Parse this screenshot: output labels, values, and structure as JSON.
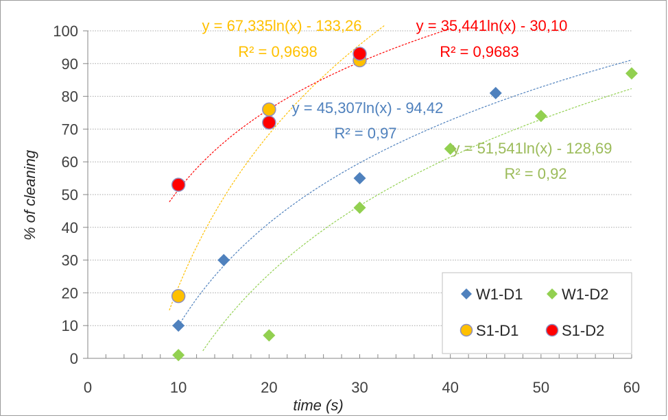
{
  "chart_data": {
    "type": "scatter",
    "xlabel": "time (s)",
    "ylabel": "% of cleaning",
    "xlim": [
      0,
      60
    ],
    "ylim": [
      0,
      100
    ],
    "xticks": [
      0,
      10,
      20,
      30,
      40,
      50,
      60
    ],
    "yticks": [
      0,
      10,
      20,
      30,
      40,
      50,
      60,
      70,
      80,
      90,
      100
    ],
    "grid": "horizontal dotted",
    "legend_position": "bottom-right",
    "series": [
      {
        "name": "W1-D1",
        "marker": "diamond",
        "color": "#4F81BD",
        "x": [
          10,
          15,
          30,
          45
        ],
        "y": [
          10,
          30,
          55,
          81
        ],
        "trendline": {
          "a": 45.307,
          "b": -94.42,
          "xmin": 10,
          "xmax": 60,
          "equation": "y = 45,307ln(x) - 94,42",
          "r2": "R² = 0,97",
          "label_color": "#4F81BD"
        }
      },
      {
        "name": "W1-D2",
        "marker": "diamond",
        "color": "#92D050",
        "x": [
          10,
          20,
          30,
          40,
          50,
          60
        ],
        "y": [
          1,
          7,
          46,
          64,
          74,
          87
        ],
        "trendline": {
          "a": 51.541,
          "b": -128.69,
          "xmin": 12.1,
          "xmax": 60,
          "equation": "y = 51,541ln(x) - 128,69",
          "r2": "R² = 0,92",
          "label_color": "#9BBB59"
        }
      },
      {
        "name": "S1-D1",
        "marker": "circle",
        "color": "#FFC000",
        "x": [
          10,
          20,
          30
        ],
        "y": [
          19,
          76,
          91
        ],
        "trendline": {
          "a": 67.335,
          "b": -133.26,
          "xmin": 9,
          "xmax": 33,
          "equation": "y = 67,335ln(x) - 133,26",
          "r2": "R² = 0,9698",
          "label_color": "#FFC000"
        }
      },
      {
        "name": "S1-D2",
        "marker": "circle",
        "color": "#FF0000",
        "x": [
          10,
          20,
          30
        ],
        "y": [
          53,
          72,
          93
        ],
        "trendline": {
          "a": 35.441,
          "b": -30.1,
          "xmin": 9,
          "xmax": 40,
          "equation": "y = 35,441ln(x) - 30,10",
          "r2": "R² = 0,9683",
          "label_color": "#FF0000"
        }
      }
    ]
  }
}
